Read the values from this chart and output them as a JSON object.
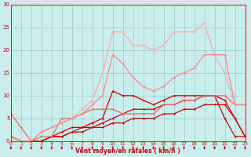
{
  "bg_color": "#c8eeed",
  "grid_color": "#a0c8c8",
  "xlabel": "Vent moyen/en rafales ( km/h )",
  "xlabel_color": "#cc0000",
  "tick_color": "#cc0000",
  "xlim": [
    0,
    23
  ],
  "ylim": [
    0,
    30
  ],
  "xticks": [
    0,
    1,
    2,
    3,
    4,
    5,
    6,
    7,
    8,
    9,
    10,
    11,
    12,
    13,
    14,
    15,
    16,
    17,
    18,
    19,
    20,
    21,
    22,
    23
  ],
  "yticks": [
    0,
    5,
    10,
    15,
    20,
    25,
    30
  ],
  "series": [
    {
      "x": [
        0,
        1,
        2,
        3,
        4,
        5,
        6,
        7,
        8,
        9,
        10,
        11,
        12,
        13,
        14,
        15,
        16,
        17,
        18,
        19,
        20,
        21,
        22,
        23
      ],
      "y": [
        1,
        0,
        0,
        0,
        1,
        1,
        2,
        2,
        3,
        3,
        4,
        4,
        5,
        5,
        5,
        6,
        6,
        7,
        7,
        8,
        8,
        8,
        5,
        1
      ],
      "color": "#cc0000",
      "alpha": 1.0,
      "lw": 0.9
    },
    {
      "x": [
        0,
        1,
        2,
        3,
        4,
        5,
        6,
        7,
        8,
        9,
        10,
        11,
        12,
        13,
        14,
        15,
        16,
        17,
        18,
        19,
        20,
        21,
        22,
        23
      ],
      "y": [
        1,
        0,
        0,
        0,
        1,
        1,
        2,
        3,
        3,
        4,
        5,
        6,
        7,
        7,
        7,
        8,
        8,
        9,
        9,
        10,
        10,
        9,
        5,
        1
      ],
      "color": "#cc0000",
      "alpha": 1.0,
      "lw": 0.9
    },
    {
      "x": [
        0,
        1,
        2,
        3,
        4,
        5,
        6,
        7,
        8,
        9,
        10,
        11,
        12,
        13,
        14,
        15,
        16,
        17,
        18,
        19,
        20,
        21,
        22,
        23
      ],
      "y": [
        1,
        0,
        0,
        0,
        1,
        2,
        3,
        3,
        4,
        5,
        11,
        10,
        10,
        9,
        8,
        9,
        10,
        10,
        10,
        10,
        10,
        5,
        1,
        1
      ],
      "color": "#cc0000",
      "alpha": 1.0,
      "lw": 0.9
    },
    {
      "x": [
        0,
        1,
        2,
        3,
        4,
        5,
        6,
        7,
        8,
        9,
        10,
        11,
        12,
        13,
        14,
        15,
        16,
        17,
        18,
        19,
        20,
        21,
        22,
        23
      ],
      "y": [
        6,
        3,
        0,
        1,
        1,
        5,
        5,
        6,
        7,
        7,
        7,
        6,
        6,
        6,
        6,
        8,
        8,
        9,
        9,
        10,
        10,
        10,
        8,
        8
      ],
      "color": "#ee6666",
      "alpha": 1.0,
      "lw": 0.9
    },
    {
      "x": [
        0,
        1,
        2,
        3,
        4,
        5,
        6,
        7,
        8,
        9,
        10,
        11,
        12,
        13,
        14,
        15,
        16,
        17,
        18,
        19,
        20,
        21,
        22,
        23
      ],
      "y": [
        1,
        0,
        0,
        2,
        3,
        4,
        5,
        7,
        9,
        15,
        24,
        24,
        21,
        21,
        20,
        21,
        24,
        24,
        24,
        26,
        19,
        15,
        8,
        8
      ],
      "color": "#ffaaaa",
      "alpha": 1.0,
      "lw": 0.9
    },
    {
      "x": [
        0,
        1,
        2,
        3,
        4,
        5,
        6,
        7,
        8,
        9,
        10,
        11,
        12,
        13,
        14,
        15,
        16,
        17,
        18,
        19,
        20,
        21,
        22,
        23
      ],
      "y": [
        1,
        0,
        0,
        2,
        3,
        4,
        5,
        6,
        8,
        10,
        19,
        17,
        14,
        12,
        11,
        12,
        14,
        15,
        16,
        19,
        19,
        19,
        8,
        8
      ],
      "color": "#ff8888",
      "alpha": 1.0,
      "lw": 0.9
    }
  ]
}
